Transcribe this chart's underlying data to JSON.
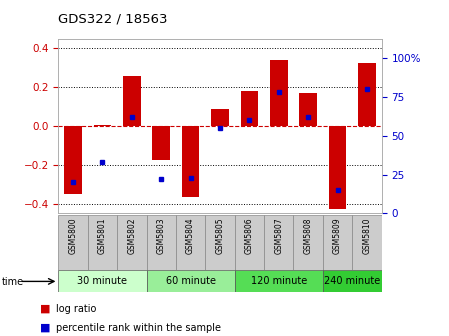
{
  "title": "GDS322 / 18563",
  "samples": [
    "GSM5800",
    "GSM5801",
    "GSM5802",
    "GSM5803",
    "GSM5804",
    "GSM5805",
    "GSM5806",
    "GSM5807",
    "GSM5808",
    "GSM5809",
    "GSM5810"
  ],
  "log_ratio": [
    -0.35,
    0.005,
    0.255,
    -0.175,
    -0.365,
    0.09,
    0.18,
    0.34,
    0.17,
    -0.43,
    0.325
  ],
  "percentile": [
    20,
    33,
    62,
    22,
    23,
    55,
    60,
    78,
    62,
    15,
    80
  ],
  "bar_color": "#cc0000",
  "dot_color": "#0000cc",
  "ylim": [
    -0.45,
    0.45
  ],
  "y2lim": [
    0,
    112.5
  ],
  "yticks": [
    -0.4,
    -0.2,
    0.0,
    0.2,
    0.4
  ],
  "y2ticks": [
    0,
    25,
    50,
    75,
    100
  ],
  "y2labels": [
    "0",
    "25",
    "50",
    "75",
    "100%"
  ],
  "groups": [
    {
      "label": "30 minute",
      "start": 0,
      "end": 3,
      "color": "#ccffcc"
    },
    {
      "label": "60 minute",
      "start": 3,
      "end": 6,
      "color": "#99ee99"
    },
    {
      "label": "120 minute",
      "start": 6,
      "end": 9,
      "color": "#55dd55"
    },
    {
      "label": "240 minute",
      "start": 9,
      "end": 11,
      "color": "#33cc33"
    }
  ],
  "time_label": "time",
  "legend_log_ratio": "log ratio",
  "legend_percentile": "percentile rank within the sample",
  "zero_line_color": "#cc0000",
  "bg_color": "#ffffff",
  "plot_bg": "#ffffff",
  "tick_label_bg": "#cccccc",
  "bar_width": 0.6
}
